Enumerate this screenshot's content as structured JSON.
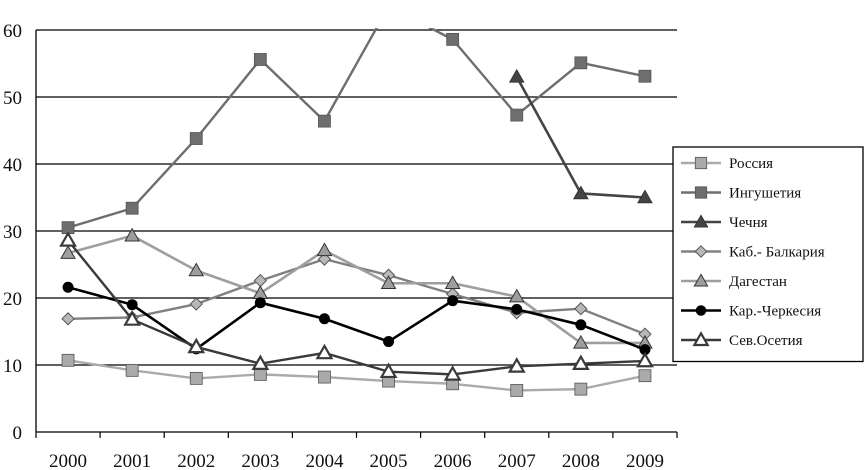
{
  "chart_data": {
    "type": "line",
    "x": [
      "2000",
      "2001",
      "2002",
      "2003",
      "2004",
      "2005",
      "2006",
      "2007",
      "2008",
      "2009"
    ],
    "ylim": [
      0,
      60
    ],
    "yticks": [
      "0",
      "10",
      "20",
      "30",
      "40",
      "50",
      "60"
    ],
    "grid": "horizontal",
    "legend_position": "right",
    "series": [
      {
        "name": "Россия",
        "color": "#aaaaaa",
        "marker": "square",
        "values": [
          10.7,
          9.2,
          8.0,
          8.6,
          8.2,
          7.6,
          7.2,
          6.2,
          6.4,
          8.4
        ]
      },
      {
        "name": "Ингушетия",
        "color": "#6e6e6e",
        "marker": "square",
        "values": [
          30.5,
          33.4,
          43.8,
          55.6,
          46.4,
          63.5,
          58.6,
          47.3,
          55.1,
          53.1
        ]
      },
      {
        "name": "Чечня",
        "color": "#444444",
        "marker": "triangle",
        "values": [
          null,
          null,
          null,
          null,
          null,
          null,
          null,
          53.0,
          35.6,
          35.0
        ]
      },
      {
        "name": "Каб.- Балкария",
        "color": "#808080",
        "marker": "diamond",
        "values": [
          16.9,
          17.1,
          19.1,
          22.6,
          25.8,
          23.4,
          20.6,
          17.8,
          18.4,
          14.6
        ]
      },
      {
        "name": "Дагестан",
        "color": "#9e9e9e",
        "marker": "triangle",
        "values": [
          26.7,
          29.3,
          24.1,
          20.7,
          27.1,
          22.2,
          22.2,
          20.2,
          13.3,
          13.3
        ]
      },
      {
        "name": "Кар.-Черкесия",
        "color": "#000000",
        "marker": "circle",
        "values": [
          21.6,
          19.0,
          12.4,
          19.3,
          16.9,
          13.5,
          19.6,
          18.3,
          16.0,
          12.3
        ]
      },
      {
        "name": "Сев.Осетия",
        "color": "#3a3a3a",
        "marker": "triangle-open",
        "values": [
          28.6,
          16.8,
          12.7,
          10.2,
          11.8,
          9.0,
          8.6,
          9.8,
          10.2,
          10.6
        ]
      }
    ]
  }
}
